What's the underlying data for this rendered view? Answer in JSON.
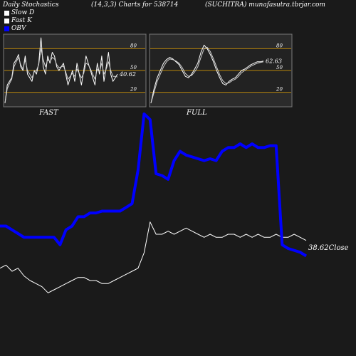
{
  "header": {
    "left": "Daily Stochastics",
    "center": "(14,3,3) Charts for 538714",
    "right": "(SUCHITRA) munafasutra.tbrjar.com"
  },
  "legend": [
    {
      "label": "Slow  D",
      "color": "#ffffff"
    },
    {
      "label": "Fast  K",
      "color": "#ffffff"
    },
    {
      "label": "OBV",
      "color": "#0000ff"
    }
  ],
  "close_label": "38.62Close",
  "chart_data": [
    {
      "type": "line",
      "title": "FAST",
      "ylim": [
        0,
        100
      ],
      "yticks": [
        "80",
        "50",
        "20"
      ],
      "levels": [
        80,
        50,
        20
      ],
      "last_value_label": "40.62",
      "series": [
        {
          "values": [
            5,
            30,
            35,
            40,
            60,
            65,
            72,
            55,
            50,
            70,
            45,
            40,
            35,
            50,
            45,
            60,
            95,
            55,
            45,
            70,
            60,
            75,
            70,
            55,
            50,
            55,
            60,
            45,
            30,
            40,
            50,
            35,
            60,
            45,
            30,
            50,
            70,
            60,
            50,
            40,
            30,
            60,
            45,
            70,
            35,
            55,
            75,
            45,
            35,
            40,
            45
          ]
        },
        {
          "values": [
            5,
            25,
            32,
            38,
            55,
            62,
            68,
            58,
            52,
            65,
            50,
            45,
            40,
            48,
            50,
            58,
            80,
            65,
            55,
            65,
            62,
            68,
            66,
            58,
            54,
            55,
            56,
            48,
            38,
            42,
            46,
            42,
            52,
            46,
            40,
            46,
            60,
            58,
            52,
            45,
            38,
            52,
            48,
            60,
            45,
            52,
            62,
            50,
            42,
            42,
            41
          ]
        }
      ]
    },
    {
      "type": "line",
      "title": "FULL",
      "ylim": [
        0,
        100
      ],
      "yticks": [
        "80",
        "50",
        "20"
      ],
      "levels": [
        80,
        50,
        20
      ],
      "last_value_label": "62.63",
      "series": [
        {
          "values": [
            5,
            25,
            40,
            50,
            60,
            65,
            68,
            66,
            62,
            58,
            50,
            42,
            40,
            45,
            52,
            60,
            75,
            85,
            80,
            72,
            62,
            50,
            40,
            32,
            30,
            35,
            38,
            40,
            45,
            50,
            52,
            55,
            58,
            60,
            62,
            62,
            63
          ]
        },
        {
          "values": [
            5,
            20,
            35,
            45,
            55,
            62,
            66,
            65,
            63,
            60,
            54,
            46,
            42,
            43,
            48,
            55,
            68,
            80,
            82,
            76,
            66,
            55,
            44,
            36,
            32,
            33,
            36,
            38,
            42,
            47,
            50,
            53,
            56,
            58,
            60,
            61,
            62
          ]
        }
      ]
    },
    {
      "type": "line",
      "title": "OBV",
      "series": [
        {
          "name": "OBV",
          "values": [
            40,
            40,
            38,
            36,
            34,
            34,
            34,
            34,
            34,
            34,
            30,
            38,
            40,
            45,
            45,
            47,
            47,
            48,
            48,
            48,
            48,
            50,
            52,
            70,
            100,
            97,
            68,
            67,
            65,
            75,
            80,
            78,
            77,
            76,
            75,
            76,
            75,
            80,
            82,
            82,
            84,
            82,
            84,
            82,
            82,
            83,
            83,
            30,
            28,
            27,
            26,
            24
          ]
        }
      ]
    },
    {
      "type": "line",
      "title": "Close",
      "series": [
        {
          "values": [
            20,
            22,
            18,
            20,
            15,
            12,
            10,
            8,
            4,
            6,
            8,
            10,
            12,
            14,
            14,
            12,
            12,
            10,
            10,
            12,
            14,
            16,
            18,
            20,
            30,
            50,
            42,
            42,
            44,
            42,
            44,
            46,
            44,
            42,
            40,
            42,
            40,
            40,
            42,
            42,
            40,
            42,
            40,
            42,
            40,
            40,
            42,
            40,
            40,
            42,
            40,
            38
          ]
        }
      ]
    }
  ]
}
